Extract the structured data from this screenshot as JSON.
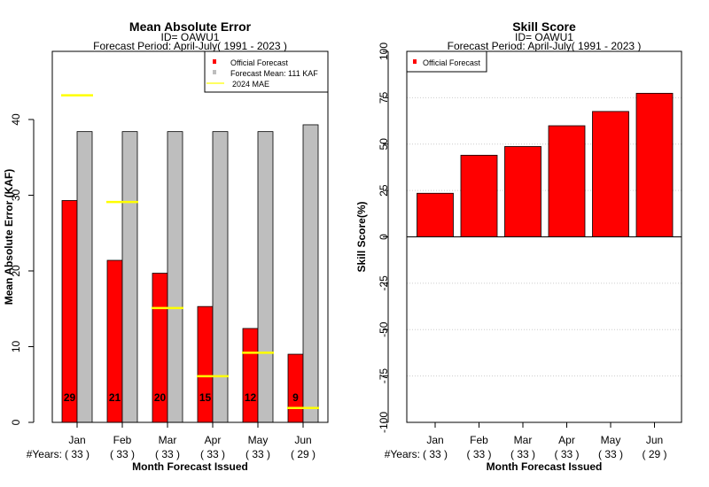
{
  "chart_data": [
    {
      "type": "bar",
      "title": "Mean Absolute Error",
      "subtitle_id": "ID= OAWU1",
      "subtitle_period": "Forecast Period: April-July( 1991 - 2023 )",
      "ylabel": "Mean Absolute Error (KAF)",
      "xlabel": "Month Forecast Issued",
      "years_label": "#Years:",
      "ylim": [
        0,
        49
      ],
      "yticks": [
        "0",
        "10",
        "20",
        "30",
        "40"
      ],
      "categories": [
        "Jan",
        "Feb",
        "Mar",
        "Apr",
        "May",
        "Jun"
      ],
      "years": [
        "( 33 )",
        "( 33 )",
        "( 33 )",
        "( 33 )",
        "( 33 )",
        "( 29 )"
      ],
      "series": [
        {
          "name": "Official Forecast",
          "color": "#ff0000",
          "values": [
            29.3,
            21.4,
            19.7,
            15.3,
            12.4,
            9.0
          ]
        },
        {
          "name": "Forecast Mean: 111 KAF",
          "color": "#bebebe",
          "values": [
            38.4,
            38.4,
            38.4,
            38.4,
            38.4,
            39.3
          ]
        },
        {
          "name": "2024  MAE",
          "color": "#ffff00",
          "values": [
            43.2,
            29.1,
            15.1,
            6.1,
            9.2,
            1.9
          ]
        }
      ],
      "bar_labels": [
        "29",
        "21",
        "20",
        "15",
        "12",
        "9"
      ],
      "legend_position": "top-right"
    },
    {
      "type": "bar",
      "title": "Skill Score",
      "subtitle_id": "ID= OAWU1",
      "subtitle_period": "Forecast Period: April-July( 1991 - 2023 )",
      "ylabel": "Skill Score(%)",
      "xlabel": "Month Forecast Issued",
      "years_label": "#Years:",
      "ylim": [
        -100,
        100
      ],
      "yticks": [
        "-100",
        "-75",
        "-50",
        "-25",
        "0",
        "25",
        "50",
        "75",
        "100"
      ],
      "grid": true,
      "categories": [
        "Jan",
        "Feb",
        "Mar",
        "Apr",
        "May",
        "Jun"
      ],
      "years": [
        "( 33 )",
        "( 33 )",
        "( 33 )",
        "( 33 )",
        "( 33 )",
        "( 29 )"
      ],
      "series": [
        {
          "name": "Official Forecast",
          "color": "#ff0000",
          "values": [
            23.5,
            44.0,
            48.7,
            59.9,
            67.6,
            77.4
          ]
        }
      ],
      "legend_position": "top-left"
    }
  ]
}
